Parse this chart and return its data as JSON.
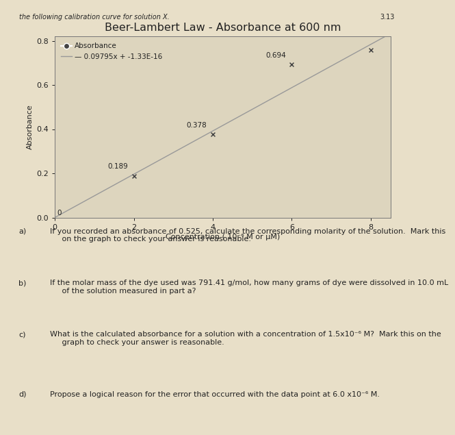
{
  "title": "Beer-Lambert Law - Absorbance at 600 nm",
  "xlabel": "Concentration ( 10⁻⁶ M or μM)",
  "ylabel": "Absorbance",
  "header_text": "the following calibration curve for solution X.",
  "page_num": "3.13",
  "legend_dot_label": "Absorbance",
  "trendline_label": "0.09795x + -1.33E-16",
  "data_x": [
    2,
    4,
    6,
    8
  ],
  "data_y": [
    0.189,
    0.378,
    0.694,
    0.757
  ],
  "data_labels": [
    "0.189",
    "0.378",
    "0.694",
    ""
  ],
  "slope": 0.09795,
  "intercept": 0.0,
  "xlim": [
    0,
    8.5
  ],
  "ylim": [
    0.0,
    0.82
  ],
  "xticks": [
    0,
    2,
    4,
    6,
    8
  ],
  "yticks": [
    0.0,
    0.2,
    0.4,
    0.6,
    0.8
  ],
  "dot_color": "#444444",
  "line_color": "#999999",
  "background_color": "#e8dfc8",
  "plot_bg_color": "#ddd5be",
  "title_color": "#222222",
  "text_color": "#222222",
  "title_fontsize": 11.5,
  "axis_label_fontsize": 8,
  "tick_fontsize": 8,
  "legend_fontsize": 7.5,
  "data_label_fontsize": 7.5,
  "questions": [
    [
      "a)",
      "If you recorded an absorbance of 0.525, calculate the corresponding molarity of the solution.  Mark this\n     on the graph to check your answer is reasonable."
    ],
    [
      "b)",
      "If the molar mass of the dye used was 791.41 g/mol, how many grams of dye were dissolved in 10.0 mL\n     of the solution measured in part a?"
    ],
    [
      "c)",
      "What is the calculated absorbance for a solution with a concentration of 1.5x10⁻⁶ M?  Mark this on the\n     graph to check your answer is reasonable."
    ],
    [
      "d)",
      "Propose a logical reason for the error that occurred with the data point at 6.0 x10⁻⁶ M."
    ]
  ]
}
